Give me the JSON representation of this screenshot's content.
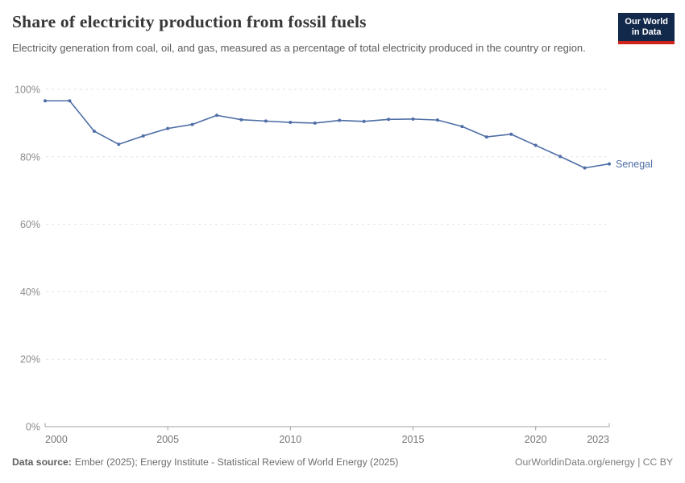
{
  "header": {
    "title": "Share of electricity production from fossil fuels",
    "subtitle": "Electricity generation from coal, oil, and gas, measured as a percentage of total electricity produced in the country or region.",
    "logo": {
      "line1": "Our World",
      "line2": "in Data"
    }
  },
  "chart_data": {
    "type": "line",
    "title": "Share of electricity production from fossil fuels",
    "xlabel": "",
    "ylabel": "",
    "xlim": [
      2000,
      2023
    ],
    "ylim": [
      0,
      100
    ],
    "x_ticks": [
      2000,
      2005,
      2010,
      2015,
      2020,
      2023
    ],
    "y_ticks": [
      0,
      20,
      40,
      60,
      80,
      100
    ],
    "y_tick_suffix": "%",
    "grid": "horizontal-dashed",
    "legend_position": "end-of-line-label",
    "series": [
      {
        "name": "Senegal",
        "color": "#4e6ea6",
        "x": [
          2000,
          2001,
          2002,
          2003,
          2004,
          2005,
          2006,
          2007,
          2008,
          2009,
          2010,
          2011,
          2012,
          2013,
          2014,
          2015,
          2016,
          2017,
          2018,
          2019,
          2020,
          2021,
          2022,
          2023
        ],
        "values": [
          96.6,
          96.6,
          87.6,
          83.7,
          86.2,
          88.4,
          89.6,
          92.3,
          91.0,
          90.6,
          90.2,
          90.0,
          90.8,
          90.5,
          91.1,
          91.2,
          90.9,
          89.0,
          85.9,
          86.7,
          83.4,
          80.1,
          76.7,
          77.9
        ]
      }
    ]
  },
  "footer": {
    "datasource_label": "Data source:",
    "datasource_text": "Ember (2025); Energy Institute - Statistical Review of World Energy (2025)",
    "attribution": "OurWorldinData.org/energy | CC BY"
  },
  "colors": {
    "line": "#4e6ea6",
    "gridline": "#e2e2e2",
    "axis_line": "#a0a0a0",
    "y_tick_text": "#8c8c8c",
    "x_tick_text": "#757575",
    "title": "#373737",
    "subtitle": "#5b5b5b",
    "footer": "#6d6d6d",
    "logo_bg": "#13294b",
    "logo_accent": "#d0231c"
  }
}
